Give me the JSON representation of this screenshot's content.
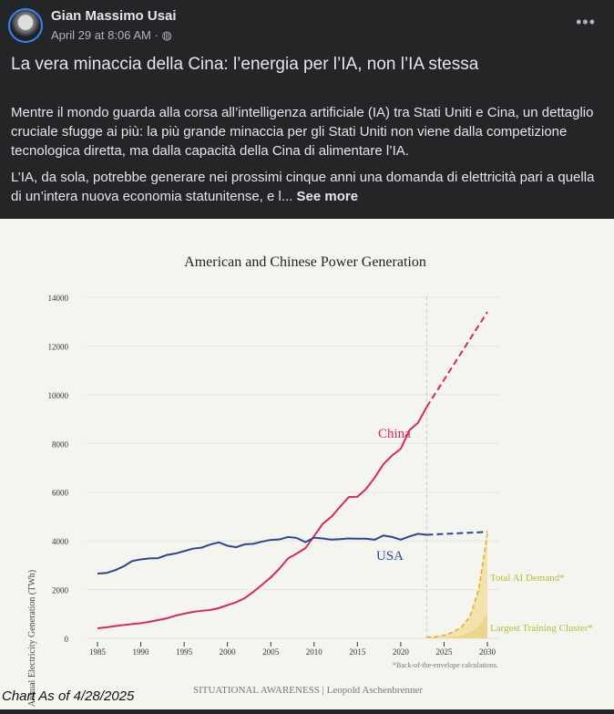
{
  "post": {
    "author": "Gian Massimo Usai",
    "timestamp": "April 29 at 8:06 AM",
    "separator": "·",
    "privacy_icon": "globe-icon",
    "menu_icon": "more-icon",
    "title": "La vera minaccia della Cina: l’energia per l’IA, non l’IA stessa",
    "paragraph1": "Mentre il mondo guarda alla corsa all’intelligenza artificiale (IA) tra Stati Uniti e Cina, un dettaglio cruciale sfugge ai più: la più grande minaccia per gli Stati Uniti non viene dalla competizione tecnologica diretta, ma dalla capacità della Cina di alimentare l’IA.",
    "paragraph2": "L’IA, da sola, potrebbe generare nei prossimi cinque anni una domanda di elettricità pari a quella di un’intera nuova economia statunitense, e l...",
    "see_more": "See more",
    "chart_as_of": "Chart As of 4/28/2025"
  },
  "chart_data": {
    "type": "line",
    "title": "American and Chinese Power Generation",
    "xlabel": "",
    "ylabel": "Annual Electricity Generation (TWh)",
    "xlim": [
      1985,
      2030
    ],
    "ylim": [
      0,
      14000
    ],
    "xticks": [
      1985,
      1990,
      1995,
      2000,
      2005,
      2010,
      2015,
      2020,
      2025,
      2030
    ],
    "yticks": [
      0,
      2000,
      4000,
      6000,
      8000,
      10000,
      12000,
      14000
    ],
    "grid": true,
    "projection_start": 2023,
    "series": [
      {
        "name": "China",
        "color": "#d6285a",
        "x": [
          1985,
          1986,
          1987,
          1988,
          1989,
          1990,
          1991,
          1992,
          1993,
          1994,
          1995,
          1996,
          1997,
          1998,
          1999,
          2000,
          2001,
          2002,
          2003,
          2004,
          2005,
          2006,
          2007,
          2008,
          2009,
          2010,
          2011,
          2012,
          2013,
          2014,
          2015,
          2016,
          2017,
          2018,
          2019,
          2020,
          2021,
          2022,
          2023
        ],
        "values": [
          410,
          450,
          500,
          545,
          585,
          620,
          680,
          750,
          820,
          930,
          1010,
          1080,
          1130,
          1160,
          1240,
          1360,
          1480,
          1650,
          1910,
          2200,
          2500,
          2860,
          3280,
          3480,
          3700,
          4200,
          4700,
          4990,
          5400,
          5800,
          5810,
          6130,
          6600,
          7150,
          7500,
          7780,
          8540,
          8850,
          9500
        ],
        "projection": {
          "x": [
            2023,
            2030
          ],
          "values": [
            9500,
            13400
          ]
        }
      },
      {
        "name": "USA",
        "color": "#2e4690",
        "x": [
          1985,
          1986,
          1987,
          1988,
          1989,
          1990,
          1991,
          1992,
          1993,
          1994,
          1995,
          1996,
          1997,
          1998,
          1999,
          2000,
          2001,
          2002,
          2003,
          2004,
          2005,
          2006,
          2007,
          2008,
          2009,
          2010,
          2011,
          2012,
          2013,
          2014,
          2015,
          2016,
          2017,
          2018,
          2019,
          2020,
          2021,
          2022,
          2023
        ],
        "values": [
          2660,
          2680,
          2790,
          2950,
          3170,
          3240,
          3280,
          3290,
          3420,
          3480,
          3580,
          3680,
          3720,
          3850,
          3940,
          3800,
          3740,
          3860,
          3880,
          3970,
          4040,
          4060,
          4160,
          4120,
          3950,
          4130,
          4100,
          4050,
          4070,
          4100,
          4090,
          4090,
          4050,
          4220,
          4160,
          4050,
          4180,
          4290,
          4250
        ],
        "projection": {
          "x": [
            2023,
            2030
          ],
          "values": [
            4250,
            4370
          ]
        }
      },
      {
        "name": "Total AI Demand*",
        "color": "#e6b021",
        "x": [
          2023,
          2024,
          2025,
          2026,
          2027,
          2028,
          2029,
          2030
        ],
        "values": [
          50,
          60,
          120,
          250,
          450,
          900,
          2000,
          4300
        ]
      },
      {
        "name": "Largest Training Cluster*",
        "color": "#e8cf7a",
        "x": [
          2023,
          2024,
          2025,
          2026,
          2027,
          2028,
          2029,
          2030
        ],
        "values": [
          10,
          15,
          30,
          60,
          120,
          250,
          500,
          1000
        ]
      }
    ],
    "footnote": "*Back-of-the-envelope calculations.",
    "source": "SITUATIONAL AWARENESS | Leopold Aschenbrenner"
  }
}
